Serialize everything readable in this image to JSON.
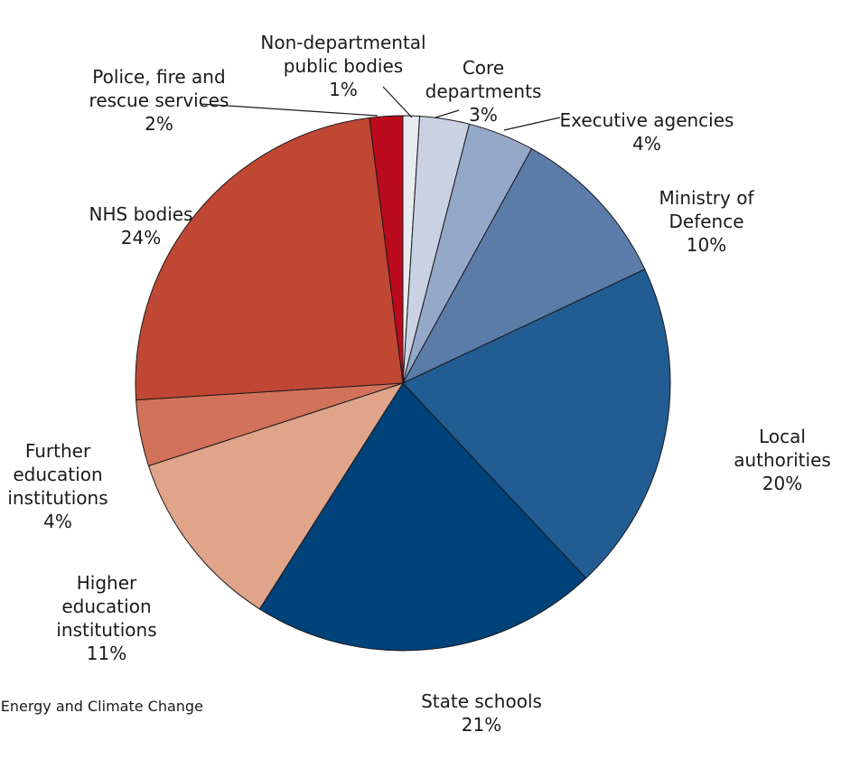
{
  "chart_data": {
    "type": "pie",
    "slices": [
      {
        "label": "Non-departmental\npublic bodies",
        "value": 1,
        "value_label": "1%",
        "color": "#e8ebf3"
      },
      {
        "label": "Core\ndepartments",
        "value": 3,
        "value_label": "3%",
        "color": "#c9d1e3"
      },
      {
        "label": "Executive agencies",
        "value": 4,
        "value_label": "4%",
        "color": "#94a8c8"
      },
      {
        "label": "Ministry of Defence",
        "value": 10,
        "value_label": "10%",
        "color": "#5b7ca9"
      },
      {
        "label": "Local authorities",
        "value": 20,
        "value_label": "20%",
        "color": "#215c92"
      },
      {
        "label": "State schools",
        "value": 21,
        "value_label": "21%",
        "color": "#00427a"
      },
      {
        "label": "Higher\neducation\ninstitutions",
        "value": 11,
        "value_label": "11%",
        "color": "#e0a48a"
      },
      {
        "label": "Further\neducation\ninstitutions",
        "value": 4,
        "value_label": "4%",
        "color": "#d3725a"
      },
      {
        "label": "NHS bodies",
        "value": 24,
        "value_label": "24%",
        "color": "#c04733"
      },
      {
        "label": "Police, fire and\nrescue services",
        "value": 2,
        "value_label": "2%",
        "color": "#bb0a1e"
      }
    ]
  },
  "source_note": "f Energy and Climate Change"
}
